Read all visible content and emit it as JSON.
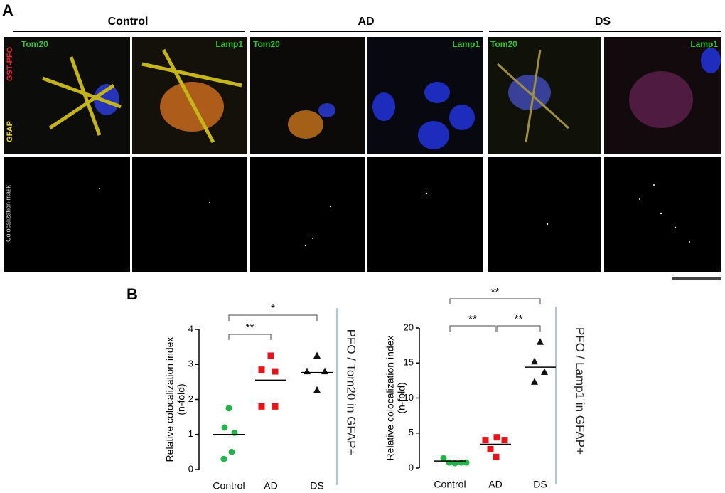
{
  "figure": {
    "panel_a": "A",
    "panel_b": "B",
    "groups": [
      "Control",
      "AD",
      "DS"
    ],
    "channel_left": "Tom20",
    "channel_right": "Lamp1",
    "stain_pfo": "GST-PFO",
    "stain_gfap": "GFAP",
    "mask_label": "Colocalization mask"
  },
  "chart_data": [
    {
      "type": "scatter",
      "categories": [
        "Control",
        "AD",
        "DS"
      ],
      "ylabel": [
        "Relative colocalization index",
        "(n-fold)"
      ],
      "side_label": "PFO / Tom20  in GFAP+",
      "values": [
        [
          1.75,
          1.2,
          1.05,
          0.5,
          0.3
        ],
        [
          3.25,
          2.85,
          2.8,
          1.8,
          1.8
        ],
        [
          3.25,
          2.8,
          2.8,
          2.27
        ]
      ],
      "means": [
        1.0,
        2.55,
        2.77
      ],
      "colors": [
        "#22b34a",
        "#e8141c",
        "#111111"
      ],
      "markers": [
        "circle",
        "square",
        "triangle"
      ],
      "ylim": [
        0,
        4
      ],
      "yticks": [
        0,
        1,
        2,
        3,
        4
      ],
      "annotations": [
        {
          "text": "**",
          "between": [
            "Control",
            "AD"
          ]
        },
        {
          "text": "*",
          "between": [
            "Control",
            "DS"
          ]
        }
      ]
    },
    {
      "type": "scatter",
      "categories": [
        "Control",
        "AD",
        "DS"
      ],
      "ylabel": [
        "Relative colocalization index",
        "(n-fold)"
      ],
      "side_label": "PFO / Lamp1 in GFAP+",
      "values": [
        [
          1.4,
          0.8,
          0.7,
          0.8,
          0.8
        ],
        [
          4.0,
          4.4,
          4.0,
          2.7,
          1.6
        ],
        [
          18.0,
          15.2,
          13.7,
          12.3
        ]
      ],
      "means": [
        1.0,
        3.4,
        14.4
      ],
      "colors": [
        "#22b34a",
        "#e8141c",
        "#111111"
      ],
      "markers": [
        "circle",
        "square",
        "triangle"
      ],
      "ylim": [
        0,
        20
      ],
      "yticks": [
        0,
        5,
        10,
        15,
        20
      ],
      "annotations": [
        {
          "text": "**",
          "between": [
            "Control",
            "AD"
          ]
        },
        {
          "text": "**",
          "between": [
            "AD",
            "DS"
          ]
        },
        {
          "text": "**",
          "between": [
            "Control",
            "DS"
          ]
        }
      ]
    }
  ]
}
